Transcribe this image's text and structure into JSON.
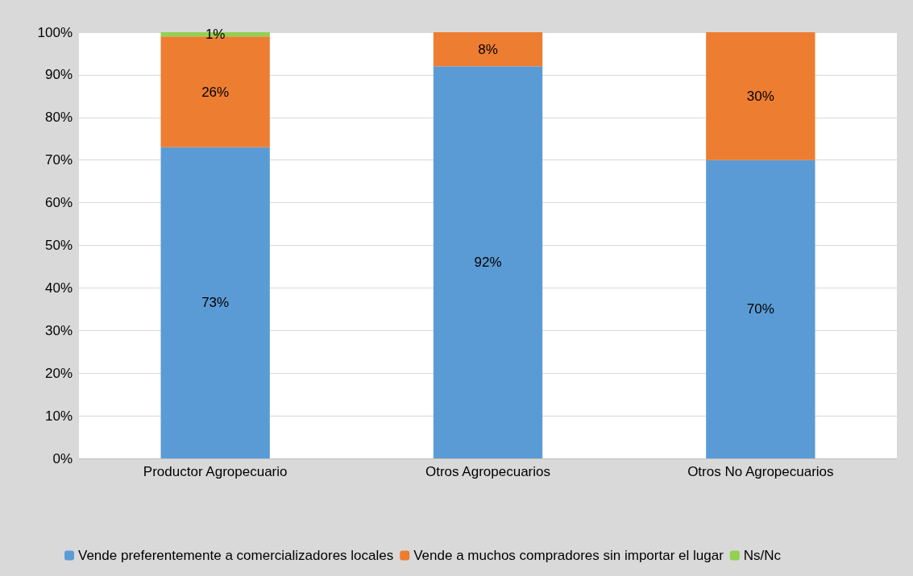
{
  "chart_data": {
    "type": "bar",
    "stacked": true,
    "categories": [
      "Productor Agropecuario",
      "Otros Agropecuarios",
      "Otros No Agropecuarios"
    ],
    "series": [
      {
        "name": "Vende preferentemente a comercializadores locales",
        "color": "#5b9bd5",
        "values": [
          73,
          92,
          70
        ],
        "value_labels": [
          "73%",
          "92%",
          "70%"
        ]
      },
      {
        "name": "Vende a muchos compradores sin importar el lugar",
        "color": "#ed7d31",
        "values": [
          26,
          8,
          30
        ],
        "value_labels": [
          "26%",
          "8%",
          "30%"
        ]
      },
      {
        "name": "Ns/Nc",
        "color": "#92d050",
        "values": [
          1,
          0,
          0
        ],
        "value_labels": [
          "1%",
          null,
          null
        ]
      }
    ],
    "ylim": [
      0,
      100
    ],
    "yticks": [
      {
        "value": 0,
        "label": "0%"
      },
      {
        "value": 10,
        "label": "10%"
      },
      {
        "value": 20,
        "label": "20%"
      },
      {
        "value": 30,
        "label": "30%"
      },
      {
        "value": 40,
        "label": "40%"
      },
      {
        "value": 50,
        "label": "50%"
      },
      {
        "value": 60,
        "label": "60%"
      },
      {
        "value": 70,
        "label": "70%"
      },
      {
        "value": 80,
        "label": "80%"
      },
      {
        "value": 90,
        "label": "90%"
      },
      {
        "value": 100,
        "label": "100%"
      }
    ],
    "grid": "y",
    "legend": "bottom"
  }
}
